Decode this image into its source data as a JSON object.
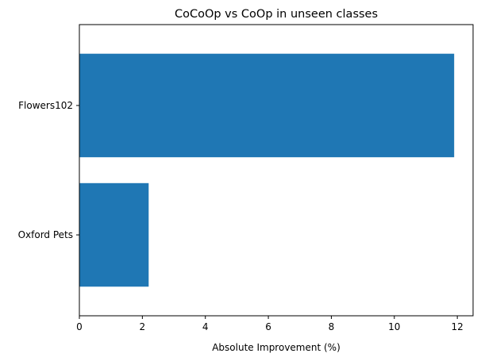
{
  "chart_data": {
    "type": "bar",
    "orientation": "horizontal",
    "title": "CoCoOp vs CoOp in unseen classes",
    "xlabel": "Absolute Improvement (%)",
    "ylabel": "",
    "categories": [
      "Flowers102",
      "Oxford Pets"
    ],
    "values": [
      11.9,
      2.2
    ],
    "xlim": [
      0,
      12.5
    ],
    "xticks": [
      0,
      2,
      4,
      6,
      8,
      10,
      12
    ],
    "grid": false,
    "bar_color": "#1f77b4"
  }
}
